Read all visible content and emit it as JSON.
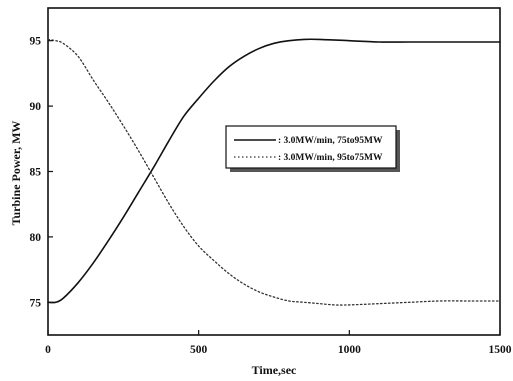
{
  "chart_data": {
    "type": "line",
    "title": "",
    "xlabel": "Time,sec",
    "ylabel": "Turbine Power, MW",
    "xlim": [
      0,
      1500
    ],
    "ylim": [
      72.5,
      97.5
    ],
    "grid": false,
    "legend_position": "center-right",
    "x_ticks": [
      "0",
      "500",
      "1000",
      "1500"
    ],
    "y_ticks": [
      "75",
      "80",
      "85",
      "90",
      "95"
    ],
    "x_tick_values": [
      0,
      500,
      1000,
      1500
    ],
    "y_tick_values": [
      75,
      80,
      85,
      90,
      95
    ],
    "series": [
      {
        "name": ": 3.0MW/min, 75to95MW",
        "style": "solid",
        "color": "#111111",
        "x": [
          0,
          25,
          50,
          100,
          150,
          200,
          250,
          300,
          350,
          400,
          450,
          500,
          550,
          600,
          650,
          700,
          750,
          800,
          850,
          900,
          1000,
          1100,
          1200,
          1300,
          1400,
          1500
        ],
        "y": [
          75.0,
          75.0,
          75.3,
          76.5,
          78.0,
          79.7,
          81.5,
          83.4,
          85.3,
          87.3,
          89.2,
          90.6,
          91.9,
          93.0,
          93.8,
          94.4,
          94.8,
          95.0,
          95.1,
          95.1,
          95.0,
          94.9,
          94.9,
          94.9,
          94.9,
          94.9
        ]
      },
      {
        "name": ": 3.0MW/min, 95to75MW",
        "style": "dotted",
        "color": "#333333",
        "x": [
          0,
          25,
          50,
          100,
          150,
          200,
          250,
          300,
          350,
          400,
          450,
          500,
          550,
          600,
          650,
          700,
          750,
          800,
          850,
          900,
          950,
          1000,
          1100,
          1200,
          1300,
          1400,
          1500
        ],
        "y": [
          95.1,
          95.0,
          94.8,
          93.8,
          92.0,
          90.3,
          88.5,
          86.6,
          84.6,
          82.6,
          80.8,
          79.3,
          78.2,
          77.2,
          76.4,
          75.8,
          75.4,
          75.1,
          75.0,
          74.9,
          74.8,
          74.8,
          74.9,
          75.0,
          75.1,
          75.1,
          75.1
        ]
      }
    ]
  }
}
